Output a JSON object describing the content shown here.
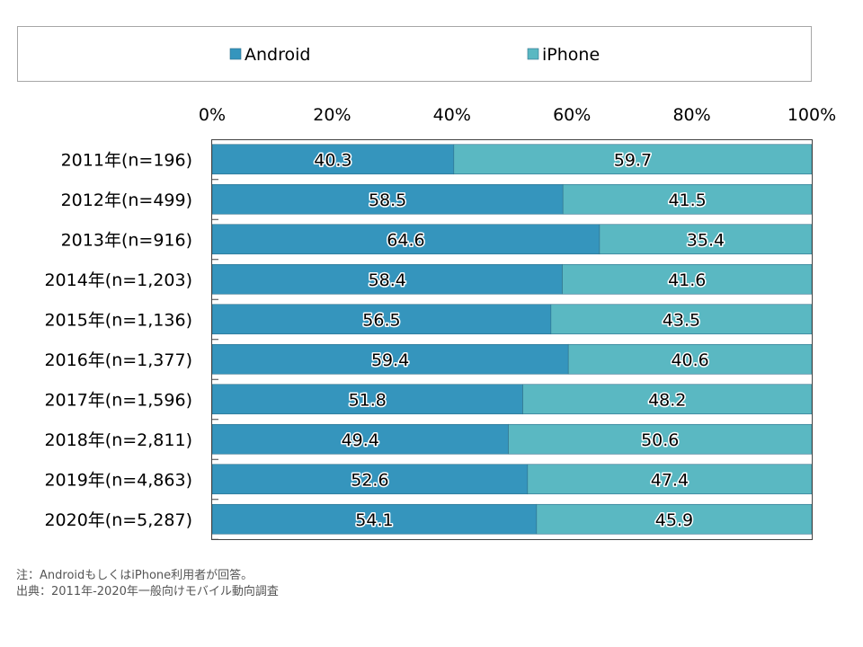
{
  "chart_data": {
    "type": "bar",
    "orientation": "horizontal",
    "stacked": true,
    "percent": true,
    "categories": [
      "2011年(n=196)",
      "2012年(n=499)",
      "2013年(n=916)",
      "2014年(n=1,203)",
      "2015年(n=1,136)",
      "2016年(n=1,377)",
      "2017年(n=1,596)",
      "2018年(n=2,811)",
      "2019年(n=4,863)",
      "2020年(n=5,287)"
    ],
    "series": [
      {
        "name": "Android",
        "color": "#3595bd",
        "values": [
          40.3,
          58.5,
          64.6,
          58.4,
          56.5,
          59.4,
          51.8,
          49.4,
          52.6,
          54.1
        ]
      },
      {
        "name": "iPhone",
        "color": "#5ab8c2",
        "values": [
          59.7,
          41.5,
          35.4,
          41.6,
          43.5,
          40.6,
          48.2,
          50.6,
          47.4,
          45.9
        ]
      }
    ],
    "xlim": [
      0,
      100
    ],
    "xticks": [
      "0%",
      "20%",
      "40%",
      "60%",
      "80%",
      "100%"
    ],
    "xtick_values": [
      0,
      20,
      40,
      60,
      80,
      100
    ],
    "axis_position": "top",
    "grid": false,
    "legend_position": "top"
  },
  "notes": {
    "note": "注：AndroidもしくはiPhone利用者が回答。",
    "source": "出典：2011年-2020年一般向けモバイル動向調査"
  }
}
